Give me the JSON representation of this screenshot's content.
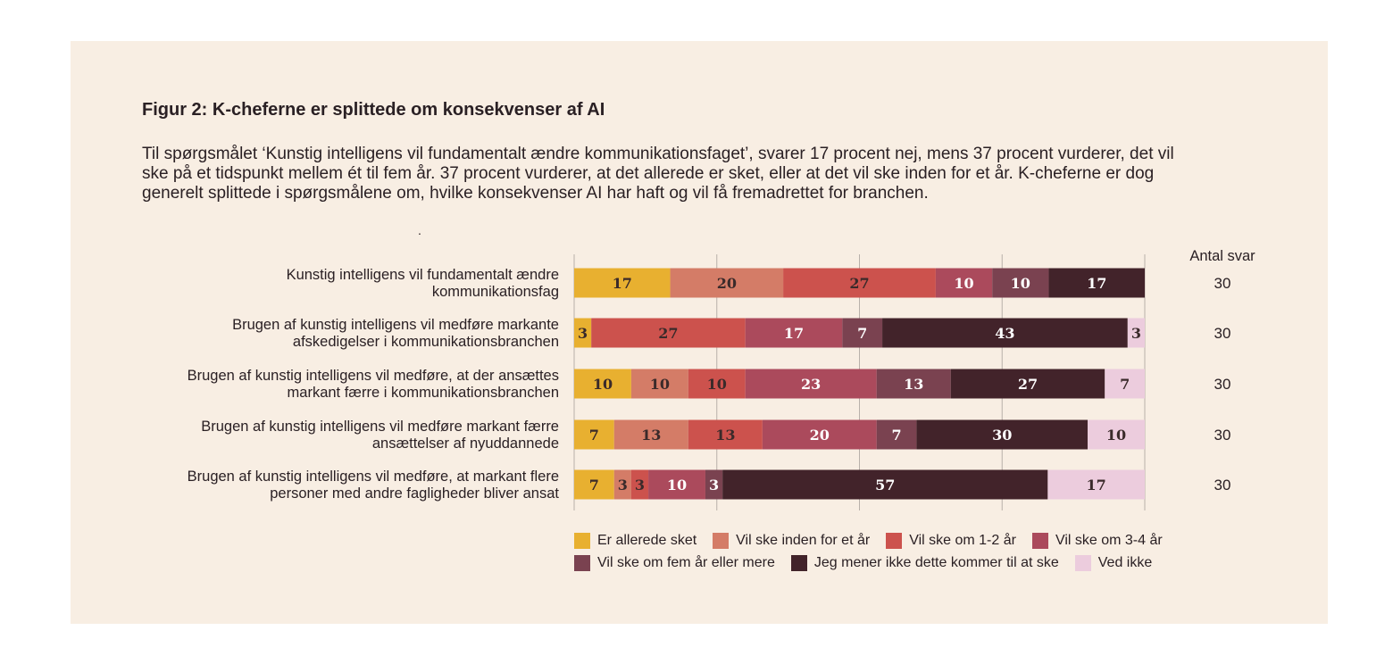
{
  "figure": {
    "title": "Figur 2: K-cheferne er splittede om konsekvenser af AI",
    "subtitle": "Til spørgsmålet ‘Kunstig intelligens vil fundamentalt ændre kommunikationsfaget’, svarer 17 procent nej, mens 37 procent vurderer, det vil ske på et tidspunkt mellem ét til fem år. 37 procent vurderer, at det allerede er sket, eller at det vil ske inden for et år. K-cheferne er dog generelt splittede i spørgsmålene om, hvilke konsekvenser AI har haft og vil få fremadrettet for branchen.",
    "stray_mark": "."
  },
  "chart_data": {
    "type": "bar",
    "orientation": "horizontal",
    "stacked": true,
    "xlim": [
      0,
      100
    ],
    "grid": true,
    "legend_position": "bottom",
    "count_header": "Antal svar",
    "categories": [
      [
        "Kunstig intelligens vil fundamentalt ændre",
        "kommunikationsfag"
      ],
      [
        "Brugen af kunstig intelligens vil medføre markante",
        "afskedigelser i kommunikationsbranchen"
      ],
      [
        "Brugen af kunstig intelligens vil medføre, at der ansættes",
        "markant færre i kommunikationsbranchen"
      ],
      [
        "Brugen af kunstig intelligens vil medføre markant færre",
        "ansættelser af nyuddannede"
      ],
      [
        "Brugen af kunstig intelligens vil medføre, at markant flere",
        "personer med andre fagligheder bliver ansat"
      ]
    ],
    "counts": [
      "30",
      "30",
      "30",
      "30",
      "30"
    ],
    "series": [
      {
        "name": "Er allerede sket",
        "color": "#e8b030",
        "values": [
          17,
          3,
          10,
          7,
          7
        ]
      },
      {
        "name": "Vil ske inden for et år",
        "color": "#d47c67",
        "values": [
          20,
          0,
          10,
          13,
          3
        ]
      },
      {
        "name": "Vil ske om 1-2 år",
        "color": "#cc524d",
        "values": [
          27,
          27,
          10,
          13,
          3
        ]
      },
      {
        "name": "Vil ske om 3-4 år",
        "color": "#ab4a5c",
        "values": [
          10,
          17,
          23,
          20,
          10
        ]
      },
      {
        "name": "Vil ske om fem år eller mere",
        "color": "#7a4250",
        "values": [
          10,
          7,
          13,
          7,
          3
        ]
      },
      {
        "name": "Jeg mener ikke dette kommer til at ske",
        "color": "#42232a",
        "values": [
          17,
          43,
          27,
          30,
          57
        ]
      },
      {
        "name": "Ved ikke",
        "color": "#ecccdd",
        "values": [
          0,
          3,
          7,
          10,
          17
        ]
      }
    ],
    "label_dark_text_series": [
      0,
      1,
      2,
      6
    ]
  }
}
